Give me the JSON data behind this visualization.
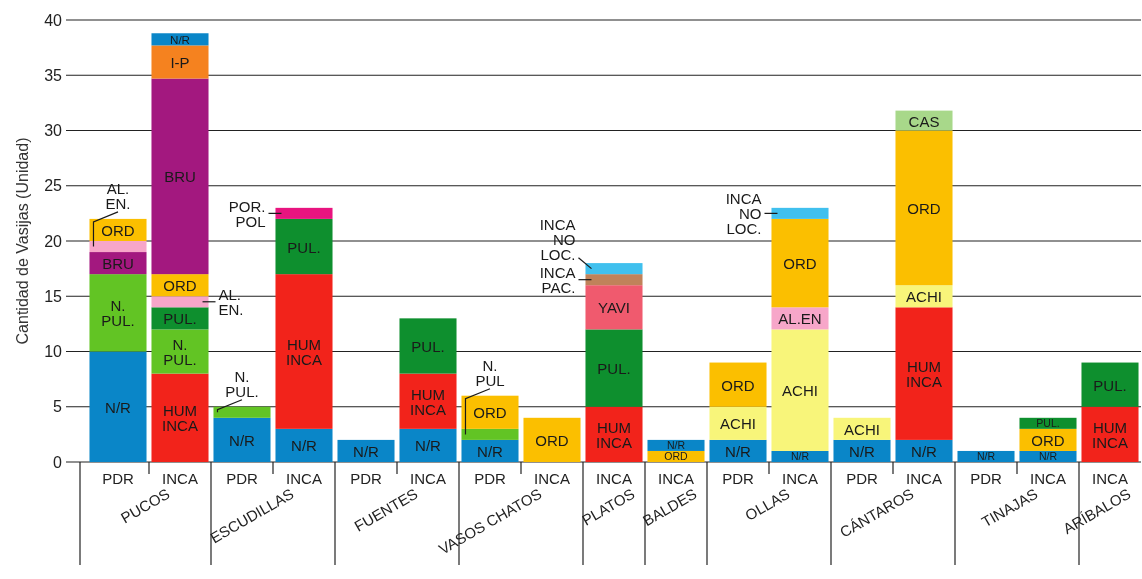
{
  "chart_data": {
    "type": "bar",
    "stacked": true,
    "ylabel": "Cantidad de Vasijas (Unidad)",
    "ylim": [
      0,
      40
    ],
    "yticks": [
      0,
      5,
      10,
      15,
      20,
      25,
      30,
      35,
      40
    ],
    "grid": "y",
    "categories": [
      "PDR",
      "INCA",
      "PDR",
      "INCA",
      "PDR",
      "INCA",
      "PDR",
      "INCA",
      "INCA",
      "INCA",
      "PDR",
      "INCA",
      "PDR",
      "INCA",
      "PDR",
      "INCA",
      "INCA"
    ],
    "annotations": [
      "PUCOS",
      "ESCUDILLAS",
      "FUENTES",
      "VASOS CHATOS",
      "PLATOS",
      "BALDES",
      "OLLAS",
      "CÁNTAROS",
      "TINAJAS",
      "ARÍBALOS"
    ],
    "series": [
      {
        "color": "#fbbf00",
        "values": [
          null,
          null,
          null,
          null,
          null,
          null,
          null,
          4,
          null,
          1,
          null,
          null,
          null,
          null,
          null,
          null,
          null
        ],
        "value_labels": [
          null,
          null,
          null,
          null,
          null,
          null,
          null,
          "ORD",
          null,
          "ORD",
          null,
          null,
          null,
          null,
          null,
          null,
          null
        ]
      },
      {
        "color": "#0a86c8",
        "values": [
          10,
          null,
          4,
          3,
          2,
          3,
          2,
          null,
          null,
          1,
          2,
          1,
          2,
          2,
          1,
          1,
          null
        ],
        "value_labels": [
          "N/R",
          null,
          "N/R",
          "N/R",
          "N/R",
          "N/R",
          "N/R",
          null,
          null,
          "N/R",
          "N/R",
          "N/R",
          "N/R",
          "N/R",
          "N/R",
          "N/R",
          null
        ]
      },
      {
        "color": "#f2231b",
        "values": [
          null,
          8,
          null,
          14,
          null,
          5,
          null,
          null,
          5,
          null,
          null,
          null,
          null,
          12,
          null,
          null,
          5
        ],
        "value_labels": [
          null,
          "HUM INCA",
          null,
          "HUM INCA",
          null,
          "HUM INCA",
          null,
          null,
          "HUM INCA",
          null,
          null,
          null,
          null,
          "HUM INCA",
          null,
          null,
          "HUM INCA"
        ]
      },
      {
        "color": "#62c424",
        "values": [
          7,
          4,
          1,
          null,
          null,
          null,
          1,
          null,
          null,
          null,
          null,
          null,
          null,
          null,
          null,
          null,
          null
        ],
        "value_labels": [
          "N. PUL.",
          "N. PUL.",
          "N. PUL.",
          null,
          null,
          null,
          "N. PUL",
          null,
          null,
          null,
          null,
          null,
          null,
          null,
          null,
          null,
          null
        ]
      },
      {
        "color": "#0e8f2e",
        "values": [
          null,
          2,
          null,
          5,
          null,
          5,
          null,
          null,
          7,
          null,
          null,
          null,
          null,
          null,
          null,
          null,
          4
        ],
        "value_labels": [
          null,
          "PUL.",
          null,
          "PUL.",
          null,
          "PUL.",
          null,
          null,
          "PUL.",
          null,
          null,
          null,
          null,
          null,
          null,
          null,
          "PUL."
        ]
      },
      {
        "color": "#a3187f",
        "values": [
          2,
          null,
          null,
          null,
          null,
          null,
          null,
          null,
          null,
          null,
          null,
          null,
          null,
          null,
          null,
          null,
          null
        ],
        "value_labels": [
          "BRU",
          null,
          null,
          null,
          null,
          null,
          null,
          null,
          null,
          null,
          null,
          null,
          null,
          null,
          null,
          null,
          null
        ]
      },
      {
        "color": "#f8f57a",
        "values": [
          null,
          null,
          null,
          null,
          null,
          null,
          null,
          null,
          null,
          null,
          3,
          11,
          2,
          2,
          null,
          null,
          null
        ],
        "value_labels": [
          null,
          null,
          null,
          null,
          null,
          null,
          null,
          null,
          null,
          null,
          "ACHI",
          "ACHI",
          "ACHI",
          "ACHI",
          null,
          null,
          null
        ]
      },
      {
        "color": "#f7a6c9",
        "values": [
          1,
          1,
          null,
          null,
          null,
          null,
          null,
          null,
          null,
          null,
          null,
          2,
          null,
          null,
          null,
          null,
          null
        ],
        "value_labels": [
          "AL. EN.",
          "AL. EN.",
          null,
          null,
          null,
          null,
          null,
          null,
          null,
          null,
          null,
          "AL.EN",
          null,
          null,
          null,
          null,
          null
        ]
      },
      {
        "color": "#fbbf00",
        "values": [
          2,
          2,
          null,
          null,
          null,
          null,
          3,
          null,
          null,
          null,
          4,
          8,
          null,
          14,
          null,
          2,
          null
        ],
        "value_labels": [
          "ORD",
          "ORD",
          null,
          null,
          null,
          null,
          "ORD",
          null,
          null,
          null,
          "ORD",
          "ORD",
          null,
          "ORD",
          null,
          "ORD",
          null
        ]
      },
      {
        "color": "#0e8f2e",
        "values": [
          null,
          null,
          null,
          null,
          null,
          null,
          null,
          null,
          null,
          null,
          null,
          null,
          null,
          null,
          null,
          1,
          null
        ],
        "value_labels": [
          null,
          null,
          null,
          null,
          null,
          null,
          null,
          null,
          null,
          null,
          null,
          null,
          null,
          null,
          null,
          "PUL.",
          null
        ]
      },
      {
        "color": "#a3187f",
        "values": [
          null,
          17.7,
          null,
          null,
          null,
          null,
          null,
          null,
          null,
          null,
          null,
          null,
          null,
          null,
          null,
          null,
          null
        ],
        "value_labels": [
          null,
          "BRU",
          null,
          null,
          null,
          null,
          null,
          null,
          null,
          null,
          null,
          null,
          null,
          null,
          null,
          null,
          null
        ]
      },
      {
        "color": "#f5821f",
        "values": [
          null,
          3,
          null,
          null,
          null,
          null,
          null,
          null,
          null,
          null,
          null,
          null,
          null,
          null,
          null,
          null,
          null
        ],
        "value_labels": [
          null,
          "I-P",
          null,
          null,
          null,
          null,
          null,
          null,
          null,
          null,
          null,
          null,
          null,
          null,
          null,
          null,
          null
        ]
      },
      {
        "color": "#e8147f",
        "values": [
          null,
          null,
          null,
          1,
          null,
          null,
          null,
          null,
          null,
          null,
          null,
          null,
          null,
          null,
          null,
          null,
          null
        ],
        "value_labels": [
          null,
          null,
          null,
          "POR. POL",
          null,
          null,
          null,
          null,
          null,
          null,
          null,
          null,
          null,
          null,
          null,
          null,
          null
        ]
      },
      {
        "color": "#f05a6e",
        "values": [
          null,
          null,
          null,
          null,
          null,
          null,
          null,
          null,
          4,
          null,
          null,
          null,
          null,
          null,
          null,
          null,
          null
        ],
        "value_labels": [
          null,
          null,
          null,
          null,
          null,
          null,
          null,
          null,
          "YAVI",
          null,
          null,
          null,
          null,
          null,
          null,
          null,
          null
        ]
      },
      {
        "color": "#c0825a",
        "values": [
          null,
          null,
          null,
          null,
          null,
          null,
          null,
          null,
          1,
          null,
          null,
          null,
          null,
          null,
          null,
          null,
          null
        ],
        "value_labels": [
          null,
          null,
          null,
          null,
          null,
          null,
          null,
          null,
          "INCA PAC.",
          null,
          null,
          null,
          null,
          null,
          null,
          null,
          null
        ]
      },
      {
        "color": "#40c0ee",
        "values": [
          null,
          null,
          null,
          null,
          null,
          null,
          null,
          null,
          1,
          null,
          null,
          1,
          null,
          null,
          null,
          null,
          null
        ],
        "value_labels": [
          null,
          null,
          null,
          null,
          null,
          null,
          null,
          null,
          "INCA NO LOC.",
          null,
          null,
          "INCA NO LOC.",
          null,
          null,
          null,
          null,
          null
        ]
      },
      {
        "color": "#a8d88a",
        "values": [
          null,
          null,
          null,
          null,
          null,
          null,
          null,
          null,
          null,
          null,
          null,
          null,
          null,
          1.8,
          null,
          null,
          null
        ],
        "value_labels": [
          null,
          null,
          null,
          null,
          null,
          null,
          null,
          null,
          null,
          null,
          null,
          null,
          null,
          "CAS",
          null,
          null,
          null
        ]
      },
      {
        "color": "#0a86c8",
        "values": [
          null,
          1.1,
          null,
          null,
          null,
          null,
          null,
          null,
          null,
          null,
          null,
          null,
          null,
          null,
          null,
          null,
          null
        ],
        "value_labels": [
          null,
          "N/R",
          null,
          null,
          null,
          null,
          null,
          null,
          null,
          null,
          null,
          null,
          null,
          null,
          null,
          null,
          null
        ]
      }
    ]
  }
}
